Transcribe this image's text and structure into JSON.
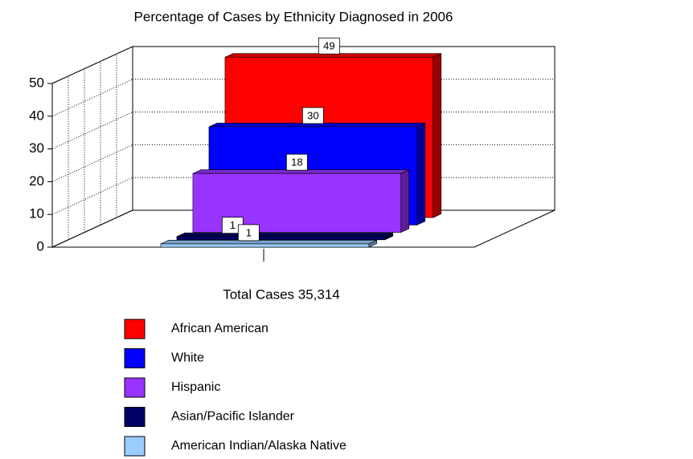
{
  "chart_data": {
    "type": "bar3d",
    "title": "Percentage of Cases by Ethnicity Diagnosed in 2006",
    "categories": [
      "Total    Cases 35,314"
    ],
    "series": [
      {
        "name": "African American",
        "color": "#ff0000",
        "values": [
          49
        ]
      },
      {
        "name": "White",
        "color": "#0000ff",
        "values": [
          30
        ]
      },
      {
        "name": "Hispanic",
        "color": "#9933ff",
        "values": [
          18
        ]
      },
      {
        "name": "Asian/Pacific Islander",
        "color": "#000066",
        "values": [
          1
        ]
      },
      {
        "name": "American Indian/Alaska Native",
        "color": "#99ccff",
        "values": [
          1
        ]
      }
    ],
    "ylim": [
      0,
      50
    ],
    "yticks": [
      0,
      10,
      20,
      30,
      40,
      50
    ],
    "grid": true,
    "legend": "bottom"
  }
}
